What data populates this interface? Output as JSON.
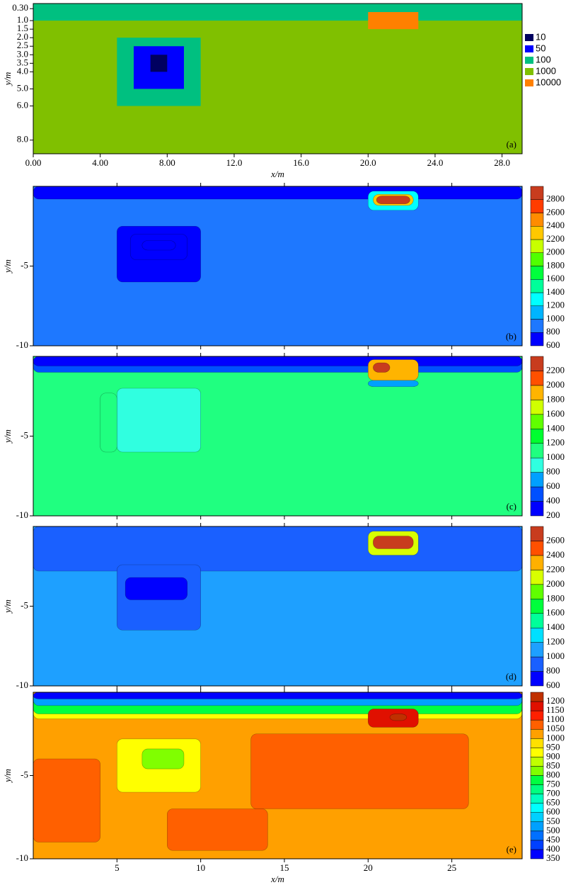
{
  "chart_data": [
    {
      "type": "model",
      "ylabel": "y/m",
      "xlabel": "x/m",
      "panel_label": "(a)",
      "xlim": [
        0,
        29.2
      ],
      "ylim": [
        0,
        8.8
      ],
      "xticks": [
        {
          "value": 0,
          "label": "0.00"
        },
        {
          "value": 4,
          "label": "4.00"
        },
        {
          "value": 8,
          "label": "8.00"
        },
        {
          "value": 12,
          "label": "12.0"
        },
        {
          "value": 16,
          "label": "16.0"
        },
        {
          "value": 20,
          "label": "20.0"
        },
        {
          "value": 24,
          "label": "24.0"
        },
        {
          "value": 28,
          "label": "28.0"
        }
      ],
      "yticks": [
        {
          "value": 0.3,
          "label": "0.30"
        },
        {
          "value": 1,
          "label": "1.0"
        },
        1.5,
        {
          "value": 2,
          "label": "2.0"
        },
        2.5,
        {
          "value": 3,
          "label": "3.0"
        },
        3.5,
        {
          "value": 4,
          "label": "4.0"
        },
        {
          "value": 5,
          "label": "5.0"
        },
        {
          "value": 6,
          "label": "6.0"
        },
        {
          "value": 8,
          "label": "8.0"
        }
      ],
      "legend": [
        {
          "name": "10",
          "color": "#000060"
        },
        {
          "name": "50",
          "color": "#0000ff"
        },
        {
          "name": "100",
          "color": "#00c080"
        },
        {
          "name": "1000",
          "color": "#80c000"
        },
        {
          "name": "10000",
          "color": "#ff8000"
        }
      ],
      "regions": [
        {
          "value": 1000,
          "x": [
            0,
            29.2
          ],
          "y": [
            0,
            8.8
          ]
        },
        {
          "value": 100,
          "x": [
            0,
            29.2
          ],
          "y": [
            0,
            1
          ]
        },
        {
          "value": 10000,
          "x": [
            20,
            23
          ],
          "y": [
            0.5,
            1.5
          ]
        },
        {
          "value": 100,
          "x": [
            5,
            10
          ],
          "y": [
            2,
            6
          ]
        },
        {
          "value": 50,
          "x": [
            6,
            9
          ],
          "y": [
            2.5,
            5
          ]
        },
        {
          "value": 10,
          "x": [
            7,
            8
          ],
          "y": [
            3,
            4
          ]
        }
      ]
    },
    {
      "type": "contour",
      "ylabel": "y/m",
      "panel_label": "(b)",
      "xlim": [
        0,
        29.2
      ],
      "ylim": [
        -10,
        0
      ],
      "xticks": [
        5,
        10,
        15,
        20,
        25
      ],
      "yticks": [
        -5,
        -10
      ],
      "levels": [
        600,
        800,
        1000,
        1200,
        1400,
        1600,
        1800,
        2000,
        2200,
        2400,
        2600,
        2800
      ],
      "colors": [
        "#0000ff",
        "#1e78ff",
        "#00b4ff",
        "#00ffff",
        "#00ff9a",
        "#00ff3c",
        "#50ff00",
        "#c8ff00",
        "#ffc800",
        "#ff8c00",
        "#ff3c00",
        "#c83c1e"
      ],
      "regions": [
        {
          "value": 900,
          "x": [
            0,
            29.2
          ],
          "y": [
            0,
            -10
          ]
        },
        {
          "value": 650,
          "x": [
            0,
            29.2
          ],
          "y": [
            0,
            -0.8
          ]
        },
        {
          "value": 750,
          "x": [
            5,
            10
          ],
          "y": [
            -2.5,
            -6
          ]
        },
        {
          "value": 650,
          "x": [
            5.8,
            9.2
          ],
          "y": [
            -3,
            -4.6
          ]
        },
        {
          "value": 600,
          "x": [
            6.5,
            8.5
          ],
          "y": [
            -3.4,
            -4
          ]
        },
        {
          "value": 1300,
          "x": [
            20,
            23
          ],
          "y": [
            -0.3,
            -1.5
          ]
        },
        {
          "value": 2200,
          "x": [
            20.3,
            22.7
          ],
          "y": [
            -0.5,
            -1.2
          ]
        },
        {
          "value": 2800,
          "x": [
            20.5,
            22.5
          ],
          "y": [
            -0.6,
            -1.1
          ]
        }
      ]
    },
    {
      "type": "contour",
      "ylabel": "y/m",
      "panel_label": "(c)",
      "xlim": [
        0,
        29.2
      ],
      "ylim": [
        -10,
        0
      ],
      "xticks": [
        5,
        10,
        15,
        20,
        25
      ],
      "yticks": [
        -5,
        -10
      ],
      "levels": [
        200,
        400,
        600,
        800,
        1000,
        1200,
        1400,
        1600,
        1800,
        2000,
        2200
      ],
      "colors": [
        "#0000ff",
        "#0050ff",
        "#00a0ff",
        "#30ffe0",
        "#20ff80",
        "#00ff30",
        "#60ff00",
        "#d0ff00",
        "#ffb400",
        "#ff5000",
        "#c83c1e"
      ],
      "regions": [
        {
          "value": 1100,
          "x": [
            0,
            29.2
          ],
          "y": [
            0,
            -10
          ]
        },
        {
          "value": 500,
          "x": [
            0,
            29.2
          ],
          "y": [
            0,
            -1
          ]
        },
        {
          "value": 250,
          "x": [
            0,
            29.2
          ],
          "y": [
            0,
            -0.6
          ]
        },
        {
          "value": 1050,
          "x": [
            4,
            5
          ],
          "y": [
            -2.3,
            -6
          ]
        },
        {
          "value": 850,
          "x": [
            5,
            10
          ],
          "y": [
            -2,
            -6
          ]
        },
        {
          "value": 700,
          "x": [
            20,
            23
          ],
          "y": [
            -1.5,
            -1.9
          ]
        },
        {
          "value": 1800,
          "x": [
            20,
            23
          ],
          "y": [
            -0.2,
            -1.5
          ]
        },
        {
          "value": 2200,
          "x": [
            20.3,
            21.3
          ],
          "y": [
            -0.4,
            -1
          ]
        }
      ]
    },
    {
      "type": "contour",
      "ylabel": "y/m",
      "panel_label": "(d)",
      "xlim": [
        0,
        29.2
      ],
      "ylim": [
        -10,
        0
      ],
      "xticks": [
        5,
        10,
        15,
        20,
        25
      ],
      "yticks": [
        -5,
        -10
      ],
      "levels": [
        600,
        800,
        1000,
        1200,
        1400,
        1600,
        1800,
        2000,
        2200,
        2400,
        2600
      ],
      "colors": [
        "#0000ff",
        "#1a60ff",
        "#1ea0ff",
        "#00e0ff",
        "#00ff9a",
        "#00ff3c",
        "#60ff00",
        "#d8ff00",
        "#ffb000",
        "#ff5000",
        "#c83c1e"
      ],
      "regions": [
        {
          "value": 1050,
          "x": [
            0,
            29.2
          ],
          "y": [
            0,
            -10
          ]
        },
        {
          "value": 900,
          "x": [
            0,
            29.2
          ],
          "y": [
            0,
            -2.8
          ]
        },
        {
          "value": 850,
          "x": [
            5,
            10
          ],
          "y": [
            -2.4,
            -6.5
          ]
        },
        {
          "value": 650,
          "x": [
            5.5,
            9.2
          ],
          "y": [
            -3.2,
            -4.6
          ]
        },
        {
          "value": 2000,
          "x": [
            20,
            23
          ],
          "y": [
            -0.3,
            -1.8
          ]
        },
        {
          "value": 2600,
          "x": [
            20.3,
            22.7
          ],
          "y": [
            -0.6,
            -1.4
          ]
        }
      ]
    },
    {
      "type": "contour",
      "ylabel": "y/m",
      "xlabel": "x/m",
      "panel_label": "(e)",
      "xlim": [
        0,
        29.2
      ],
      "ylim": [
        -10,
        0
      ],
      "xticks": [
        5,
        10,
        15,
        20,
        25
      ],
      "yticks": [
        -5,
        -10
      ],
      "levels": [
        350,
        400,
        450,
        500,
        550,
        600,
        650,
        700,
        750,
        800,
        850,
        900,
        950,
        1000,
        1050,
        1100,
        1150,
        1200
      ],
      "colors": [
        "#0000ff",
        "#0040ff",
        "#0070ff",
        "#00a0ff",
        "#00d0ff",
        "#00ffff",
        "#00ffc0",
        "#00ff80",
        "#00ff40",
        "#80ff00",
        "#c0ff00",
        "#ffff00",
        "#ffe000",
        "#ffa000",
        "#ff6000",
        "#ff2000",
        "#e01000",
        "#c03000"
      ],
      "regions": [
        {
          "value": 1000,
          "x": [
            0,
            29.2
          ],
          "y": [
            0,
            -10
          ]
        },
        {
          "value": 900,
          "x": [
            0,
            29.2
          ],
          "y": [
            0,
            -1.6
          ]
        },
        {
          "value": 750,
          "x": [
            0,
            29.2
          ],
          "y": [
            0,
            -1.3
          ]
        },
        {
          "value": 500,
          "x": [
            0,
            29.2
          ],
          "y": [
            0,
            -0.8
          ]
        },
        {
          "value": 350,
          "x": [
            0,
            29.2
          ],
          "y": [
            0,
            -0.4
          ]
        },
        {
          "value": 1050,
          "x": [
            0,
            4
          ],
          "y": [
            -4,
            -9
          ]
        },
        {
          "value": 1050,
          "x": [
            13,
            26
          ],
          "y": [
            -2.5,
            -7
          ]
        },
        {
          "value": 1050,
          "x": [
            8,
            14
          ],
          "y": [
            -7,
            -9.5
          ]
        },
        {
          "value": 900,
          "x": [
            5,
            10
          ],
          "y": [
            -2.8,
            -6
          ]
        },
        {
          "value": 800,
          "x": [
            6.5,
            9
          ],
          "y": [
            -3.4,
            -4.6
          ]
        },
        {
          "value": 1150,
          "x": [
            20,
            23
          ],
          "y": [
            -1,
            -2.1
          ]
        },
        {
          "value": 1200,
          "x": [
            21.3,
            22.3
          ],
          "y": [
            -1.3,
            -1.7
          ]
        }
      ]
    }
  ]
}
